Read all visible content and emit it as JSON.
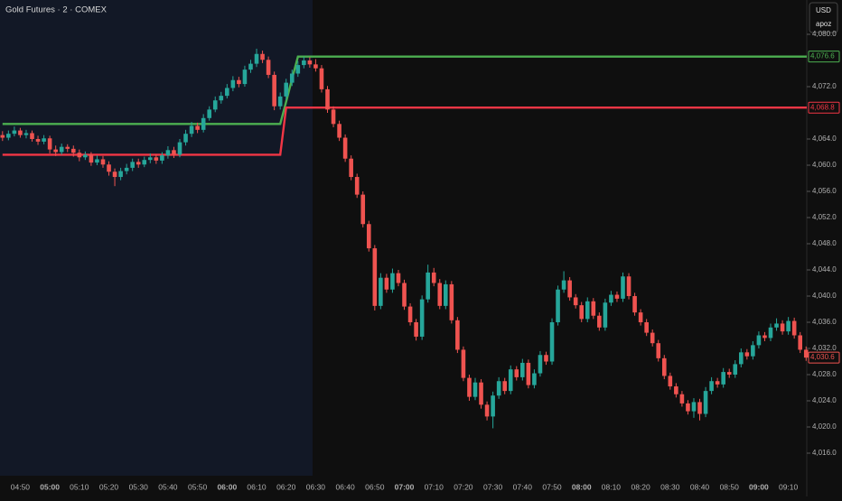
{
  "chart_data": {
    "type": "candlestick",
    "title": "Gold Futures · 2 · COMEX",
    "currency": "USD",
    "account": "apoz",
    "up_color": "#26a69a",
    "down_color": "#ef5350",
    "ylim": [
      4012.55,
      4085.24
    ],
    "yticks": [
      {
        "value": 4080,
        "label": "4,080.0"
      },
      {
        "value": 4072,
        "label": "4,072.0"
      },
      {
        "value": 4064,
        "label": "4,064.0"
      },
      {
        "value": 4060,
        "label": "4,060.0"
      },
      {
        "value": 4056,
        "label": "4,056.0"
      },
      {
        "value": 4052,
        "label": "4,052.0"
      },
      {
        "value": 4048,
        "label": "4,048.0"
      },
      {
        "value": 4044,
        "label": "4,044.0"
      },
      {
        "value": 4040,
        "label": "4,040.0"
      },
      {
        "value": 4036,
        "label": "4,036.0"
      },
      {
        "value": 4032,
        "label": "4,032.0"
      },
      {
        "value": 4028,
        "label": "4,028.0"
      },
      {
        "value": 4024,
        "label": "4,024.0"
      },
      {
        "value": 4020,
        "label": "4,020.0"
      },
      {
        "value": 4016,
        "label": "4,016.0"
      }
    ],
    "categories": [
      null,
      null,
      null,
      "04:50",
      null,
      null,
      null,
      null,
      "05:00",
      null,
      null,
      null,
      null,
      "05:10",
      null,
      null,
      null,
      null,
      "05:20",
      null,
      null,
      null,
      null,
      "05:30",
      null,
      null,
      null,
      null,
      "05:40",
      null,
      null,
      null,
      null,
      "05:50",
      null,
      null,
      null,
      null,
      "06:00",
      null,
      null,
      null,
      null,
      "06:10",
      null,
      null,
      null,
      null,
      "06:20",
      null,
      null,
      null,
      null,
      "06:30",
      null,
      null,
      null,
      null,
      "06:40",
      null,
      null,
      null,
      null,
      "06:50",
      null,
      null,
      null,
      null,
      "07:00",
      null,
      null,
      null,
      null,
      "07:10",
      null,
      null,
      null,
      null,
      "07:20",
      null,
      null,
      null,
      null,
      "07:30",
      null,
      null,
      null,
      null,
      "07:40",
      null,
      null,
      null,
      null,
      "07:50",
      null,
      null,
      null,
      null,
      "08:00",
      null,
      null,
      null,
      null,
      "08:10",
      null,
      null,
      null,
      null,
      "08:20",
      null,
      null,
      null,
      null,
      "08:30",
      null,
      null,
      null,
      null,
      "08:40",
      null,
      null,
      null,
      null,
      "08:50",
      null,
      null,
      null,
      null,
      "09:00",
      null,
      null,
      null,
      null,
      "09:10",
      null,
      null,
      null
    ],
    "ohlc": [
      [
        4064.6,
        4065.2,
        4063.7,
        4064.2
      ],
      [
        4064.2,
        4065.3,
        4063.8,
        4064.8
      ],
      [
        4064.8,
        4065.9,
        4064.4,
        4065.3
      ],
      [
        4065.3,
        4065.7,
        4064.2,
        4064.6
      ],
      [
        4064.6,
        4065.4,
        4064.1,
        4064.9
      ],
      [
        4064.9,
        4065.3,
        4063.6,
        4064.0
      ],
      [
        4064.0,
        4064.5,
        4063.1,
        4063.6
      ],
      [
        4063.6,
        4064.6,
        4063.2,
        4064.1
      ],
      [
        4064.1,
        4064.5,
        4061.8,
        4062.4
      ],
      [
        4062.4,
        4063.0,
        4061.4,
        4062.0
      ],
      [
        4062.0,
        4063.3,
        4061.6,
        4062.8
      ],
      [
        4062.8,
        4063.2,
        4062.0,
        4062.5
      ],
      [
        4062.5,
        4063.0,
        4061.3,
        4061.9
      ],
      [
        4061.9,
        4062.4,
        4060.6,
        4061.2
      ],
      [
        4061.2,
        4062.1,
        4060.8,
        4061.6
      ],
      [
        4061.6,
        4062.0,
        4059.9,
        4060.4
      ],
      [
        4060.4,
        4061.5,
        4060.0,
        4060.9
      ],
      [
        4060.9,
        4061.4,
        4059.6,
        4060.1
      ],
      [
        4060.1,
        4060.6,
        4058.4,
        4059.0
      ],
      [
        4059.0,
        4059.5,
        4056.8,
        4058.2
      ],
      [
        4058.2,
        4059.6,
        4057.7,
        4059.1
      ],
      [
        4059.1,
        4060.2,
        4058.6,
        4059.6
      ],
      [
        4059.6,
        4061.0,
        4059.1,
        4060.5
      ],
      [
        4060.5,
        4061.0,
        4059.6,
        4060.1
      ],
      [
        4060.1,
        4061.3,
        4059.7,
        4060.8
      ],
      [
        4060.8,
        4061.8,
        4060.3,
        4061.2
      ],
      [
        4061.2,
        4061.7,
        4060.2,
        4060.7
      ],
      [
        4060.7,
        4062.0,
        4060.2,
        4061.5
      ],
      [
        4061.5,
        4062.9,
        4061.0,
        4062.3
      ],
      [
        4062.3,
        4062.8,
        4061.1,
        4061.6
      ],
      [
        4061.6,
        4064.0,
        4061.2,
        4063.5
      ],
      [
        4063.5,
        4065.4,
        4063.0,
        4064.8
      ],
      [
        4064.8,
        4066.6,
        4064.3,
        4066.0
      ],
      [
        4066.0,
        4066.5,
        4064.9,
        4065.4
      ],
      [
        4065.4,
        4067.8,
        4065.0,
        4067.2
      ],
      [
        4067.2,
        4069.0,
        4066.8,
        4068.5
      ],
      [
        4068.5,
        4070.5,
        4068.1,
        4069.9
      ],
      [
        4069.9,
        4071.2,
        4069.4,
        4070.6
      ],
      [
        4070.6,
        4072.4,
        4070.2,
        4071.8
      ],
      [
        4071.8,
        4073.6,
        4071.3,
        4073.0
      ],
      [
        4073.0,
        4073.5,
        4071.9,
        4072.4
      ],
      [
        4072.4,
        4075.2,
        4072.0,
        4074.6
      ],
      [
        4074.6,
        4076.1,
        4074.1,
        4075.5
      ],
      [
        4075.5,
        4077.8,
        4075.0,
        4077.0
      ],
      [
        4077.0,
        4077.5,
        4075.6,
        4076.1
      ],
      [
        4076.1,
        4076.6,
        4073.3,
        4073.8
      ],
      [
        4073.8,
        4074.3,
        4068.4,
        4069.0
      ],
      [
        4069.0,
        4071.1,
        4068.5,
        4070.5
      ],
      [
        4070.5,
        4073.2,
        4070.0,
        4072.6
      ],
      [
        4072.6,
        4074.6,
        4072.1,
        4074.0
      ],
      [
        4074.0,
        4075.9,
        4073.5,
        4075.3
      ],
      [
        4075.3,
        4076.6,
        4074.8,
        4076.0
      ],
      [
        4076.0,
        4076.5,
        4074.9,
        4075.4
      ],
      [
        4075.4,
        4076.2,
        4074.3,
        4074.8
      ],
      [
        4074.8,
        4075.3,
        4071.1,
        4071.6
      ],
      [
        4071.6,
        4072.1,
        4068.0,
        4068.5
      ],
      [
        4068.5,
        4069.0,
        4065.8,
        4066.3
      ],
      [
        4066.3,
        4066.8,
        4063.7,
        4064.2
      ],
      [
        4064.2,
        4064.7,
        4060.5,
        4061.0
      ],
      [
        4061.0,
        4061.5,
        4057.7,
        4058.2
      ],
      [
        4058.2,
        4058.7,
        4055.0,
        4055.5
      ],
      [
        4055.5,
        4056.0,
        4050.5,
        4051.0
      ],
      [
        4051.0,
        4051.5,
        4046.8,
        4047.3
      ],
      [
        4047.3,
        4047.8,
        4037.8,
        4038.5
      ],
      [
        4038.5,
        4043.5,
        4038.0,
        4042.8
      ],
      [
        4042.8,
        4043.4,
        4040.5,
        4041.0
      ],
      [
        4041.0,
        4044.2,
        4040.5,
        4043.5
      ],
      [
        4043.5,
        4044.0,
        4041.5,
        4042.0
      ],
      [
        4042.0,
        4042.5,
        4037.9,
        4038.4
      ],
      [
        4038.4,
        4038.9,
        4035.5,
        4036.0
      ],
      [
        4036.0,
        4036.5,
        4033.2,
        4033.8
      ],
      [
        4033.8,
        4040.1,
        4033.3,
        4039.5
      ],
      [
        4039.5,
        4044.8,
        4039.0,
        4043.6
      ],
      [
        4043.6,
        4044.3,
        4041.5,
        4042.0
      ],
      [
        4042.0,
        4042.6,
        4038.0,
        4038.5
      ],
      [
        4038.5,
        4042.4,
        4038.0,
        4041.8
      ],
      [
        4041.8,
        4042.3,
        4035.8,
        4036.3
      ],
      [
        4036.3,
        4036.8,
        4031.3,
        4031.8
      ],
      [
        4031.8,
        4032.3,
        4027.0,
        4027.5
      ],
      [
        4027.5,
        4028.0,
        4024.0,
        4024.6
      ],
      [
        4024.6,
        4027.5,
        4024.1,
        4026.8
      ],
      [
        4026.8,
        4027.3,
        4022.8,
        4023.4
      ],
      [
        4023.4,
        4023.9,
        4021.0,
        4021.6
      ],
      [
        4021.6,
        4025.4,
        4019.8,
        4024.8
      ],
      [
        4024.8,
        4027.6,
        4024.3,
        4027.0
      ],
      [
        4027.0,
        4027.5,
        4025.0,
        4025.5
      ],
      [
        4025.5,
        4029.4,
        4025.0,
        4028.8
      ],
      [
        4028.8,
        4029.3,
        4027.1,
        4027.6
      ],
      [
        4027.6,
        4030.4,
        4027.1,
        4029.8
      ],
      [
        4029.8,
        4030.3,
        4025.9,
        4026.4
      ],
      [
        4026.4,
        4028.8,
        4025.9,
        4028.2
      ],
      [
        4028.2,
        4031.6,
        4027.7,
        4031.0
      ],
      [
        4031.0,
        4031.5,
        4029.5,
        4030.0
      ],
      [
        4030.0,
        4036.6,
        4029.5,
        4036.0
      ],
      [
        4036.0,
        4041.6,
        4035.5,
        4041.0
      ],
      [
        4041.0,
        4043.8,
        4040.5,
        4042.4
      ],
      [
        4042.4,
        4042.9,
        4039.3,
        4039.8
      ],
      [
        4039.8,
        4040.3,
        4038.1,
        4038.6
      ],
      [
        4038.6,
        4039.1,
        4036.0,
        4036.5
      ],
      [
        4036.5,
        4039.8,
        4036.0,
        4039.2
      ],
      [
        4039.2,
        4039.7,
        4036.5,
        4037.0
      ],
      [
        4037.0,
        4037.5,
        4034.7,
        4035.2
      ],
      [
        4035.2,
        4039.6,
        4034.7,
        4039.0
      ],
      [
        4039.0,
        4040.8,
        4038.5,
        4040.2
      ],
      [
        4040.2,
        4040.7,
        4039.1,
        4039.6
      ],
      [
        4039.6,
        4043.6,
        4039.1,
        4043.0
      ],
      [
        4043.0,
        4043.5,
        4039.5,
        4040.0
      ],
      [
        4040.0,
        4040.5,
        4037.0,
        4037.5
      ],
      [
        4037.5,
        4038.0,
        4035.5,
        4036.0
      ],
      [
        4036.0,
        4036.5,
        4033.9,
        4034.4
      ],
      [
        4034.4,
        4034.9,
        4032.3,
        4032.8
      ],
      [
        4032.8,
        4033.3,
        4030.0,
        4030.5
      ],
      [
        4030.5,
        4031.0,
        4027.3,
        4027.8
      ],
      [
        4027.8,
        4028.3,
        4025.7,
        4026.2
      ],
      [
        4026.2,
        4026.7,
        4024.5,
        4025.0
      ],
      [
        4025.0,
        4025.5,
        4023.1,
        4023.6
      ],
      [
        4023.6,
        4024.1,
        4021.9,
        4022.4
      ],
      [
        4022.4,
        4024.4,
        4021.4,
        4023.8
      ],
      [
        4023.8,
        4024.3,
        4021.0,
        4022.0
      ],
      [
        4022.0,
        4026.1,
        4021.5,
        4025.5
      ],
      [
        4025.5,
        4027.6,
        4025.0,
        4027.0
      ],
      [
        4027.0,
        4027.5,
        4026.0,
        4026.5
      ],
      [
        4026.5,
        4029.0,
        4026.0,
        4028.4
      ],
      [
        4028.4,
        4028.9,
        4027.5,
        4028.0
      ],
      [
        4028.0,
        4030.2,
        4027.5,
        4029.6
      ],
      [
        4029.6,
        4032.0,
        4029.1,
        4031.4
      ],
      [
        4031.4,
        4031.9,
        4030.3,
        4030.8
      ],
      [
        4030.8,
        4033.1,
        4030.3,
        4032.5
      ],
      [
        4032.5,
        4034.6,
        4032.0,
        4034.0
      ],
      [
        4034.0,
        4034.5,
        4033.1,
        4033.6
      ],
      [
        4033.6,
        4035.8,
        4033.1,
        4035.2
      ],
      [
        4035.2,
        4036.6,
        4034.7,
        4035.8
      ],
      [
        4035.8,
        4036.3,
        4034.1,
        4034.6
      ],
      [
        4034.6,
        4036.8,
        4034.1,
        4036.2
      ],
      [
        4036.2,
        4036.7,
        4033.5,
        4034.0
      ],
      [
        4034.0,
        4034.5,
        4031.3,
        4031.8
      ],
      [
        4031.8,
        4032.3,
        4030.1,
        4030.6
      ]
    ],
    "series": [
      {
        "color": "#4caf50",
        "values": [
          4066.3,
          4066.3,
          4066.3,
          4066.3,
          4066.3,
          4066.3,
          4066.3,
          4066.3,
          4066.3,
          4066.3,
          4066.3,
          4066.3,
          4066.3,
          4066.3,
          4066.3,
          4066.3,
          4066.3,
          4066.3,
          4066.3,
          4066.3,
          4066.3,
          4066.3,
          4066.3,
          4066.3,
          4066.3,
          4066.3,
          4066.3,
          4066.3,
          4066.3,
          4066.3,
          4066.3,
          4066.3,
          4066.3,
          4066.3,
          4066.3,
          4066.3,
          4066.3,
          4066.3,
          4066.3,
          4066.3,
          4066.3,
          4066.3,
          4066.3,
          4066.3,
          4066.3,
          4066.3,
          4066.3,
          4066.3,
          4069.7,
          4073.2,
          4076.6,
          4076.6,
          4076.6,
          4076.6,
          4076.6,
          4076.6,
          4076.6,
          4076.6,
          4076.6,
          4076.6,
          4076.6,
          4076.6,
          4076.6,
          4076.6,
          4076.6,
          4076.6,
          4076.6,
          4076.6,
          4076.6,
          4076.6,
          4076.6,
          4076.6,
          4076.6,
          4076.6,
          4076.6,
          4076.6,
          4076.6,
          4076.6,
          4076.6,
          4076.6,
          4076.6,
          4076.6,
          4076.6,
          4076.6,
          4076.6,
          4076.6,
          4076.6,
          4076.6,
          4076.6,
          4076.6,
          4076.6,
          4076.6,
          4076.6,
          4076.6,
          4076.6,
          4076.6,
          4076.6,
          4076.6,
          4076.6,
          4076.6,
          4076.6,
          4076.6,
          4076.6,
          4076.6,
          4076.6,
          4076.6,
          4076.6,
          4076.6,
          4076.6,
          4076.6,
          4076.6,
          4076.6,
          4076.6,
          4076.6,
          4076.6,
          4076.6,
          4076.6,
          4076.6,
          4076.6,
          4076.6,
          4076.6,
          4076.6,
          4076.6,
          4076.6,
          4076.6,
          4076.6,
          4076.6,
          4076.6,
          4076.6,
          4076.6,
          4076.6,
          4076.6,
          4076.6,
          4076.6,
          4076.6,
          4076.6,
          4076.6
        ]
      },
      {
        "color": "#f23645",
        "values": [
          4061.6,
          4061.6,
          4061.6,
          4061.6,
          4061.6,
          4061.6,
          4061.6,
          4061.6,
          4061.6,
          4061.6,
          4061.6,
          4061.6,
          4061.6,
          4061.6,
          4061.6,
          4061.6,
          4061.6,
          4061.6,
          4061.6,
          4061.6,
          4061.6,
          4061.6,
          4061.6,
          4061.6,
          4061.6,
          4061.6,
          4061.6,
          4061.6,
          4061.6,
          4061.6,
          4061.6,
          4061.6,
          4061.6,
          4061.6,
          4061.6,
          4061.6,
          4061.6,
          4061.6,
          4061.6,
          4061.6,
          4061.6,
          4061.6,
          4061.6,
          4061.6,
          4061.6,
          4061.6,
          4061.6,
          4061.6,
          4068.8,
          4068.8,
          4068.8,
          4068.8,
          4068.8,
          4068.8,
          4068.8,
          4068.8,
          4068.8,
          4068.8,
          4068.8,
          4068.8,
          4068.8,
          4068.8,
          4068.8,
          4068.8,
          4068.8,
          4068.8,
          4068.8,
          4068.8,
          4068.8,
          4068.8,
          4068.8,
          4068.8,
          4068.8,
          4068.8,
          4068.8,
          4068.8,
          4068.8,
          4068.8,
          4068.8,
          4068.8,
          4068.8,
          4068.8,
          4068.8,
          4068.8,
          4068.8,
          4068.8,
          4068.8,
          4068.8,
          4068.8,
          4068.8,
          4068.8,
          4068.8,
          4068.8,
          4068.8,
          4068.8,
          4068.8,
          4068.8,
          4068.8,
          4068.8,
          4068.8,
          4068.8,
          4068.8,
          4068.8,
          4068.8,
          4068.8,
          4068.8,
          4068.8,
          4068.8,
          4068.8,
          4068.8,
          4068.8,
          4068.8,
          4068.8,
          4068.8,
          4068.8,
          4068.8,
          4068.8,
          4068.8,
          4068.8,
          4068.8,
          4068.8,
          4068.8,
          4068.8,
          4068.8,
          4068.8,
          4068.8,
          4068.8,
          4068.8,
          4068.8,
          4068.8,
          4068.8,
          4068.8,
          4068.8,
          4068.8,
          4068.8,
          4068.8,
          4068.8
        ]
      }
    ],
    "price_markers": [
      {
        "value": 4076.6,
        "label": "4,076.6",
        "color": "#4caf50"
      },
      {
        "value": 4068.8,
        "label": "4,068.8",
        "color": "#f23645"
      },
      {
        "value": 4030.6,
        "label": "4,030.6",
        "color": "#ef5350"
      }
    ]
  }
}
